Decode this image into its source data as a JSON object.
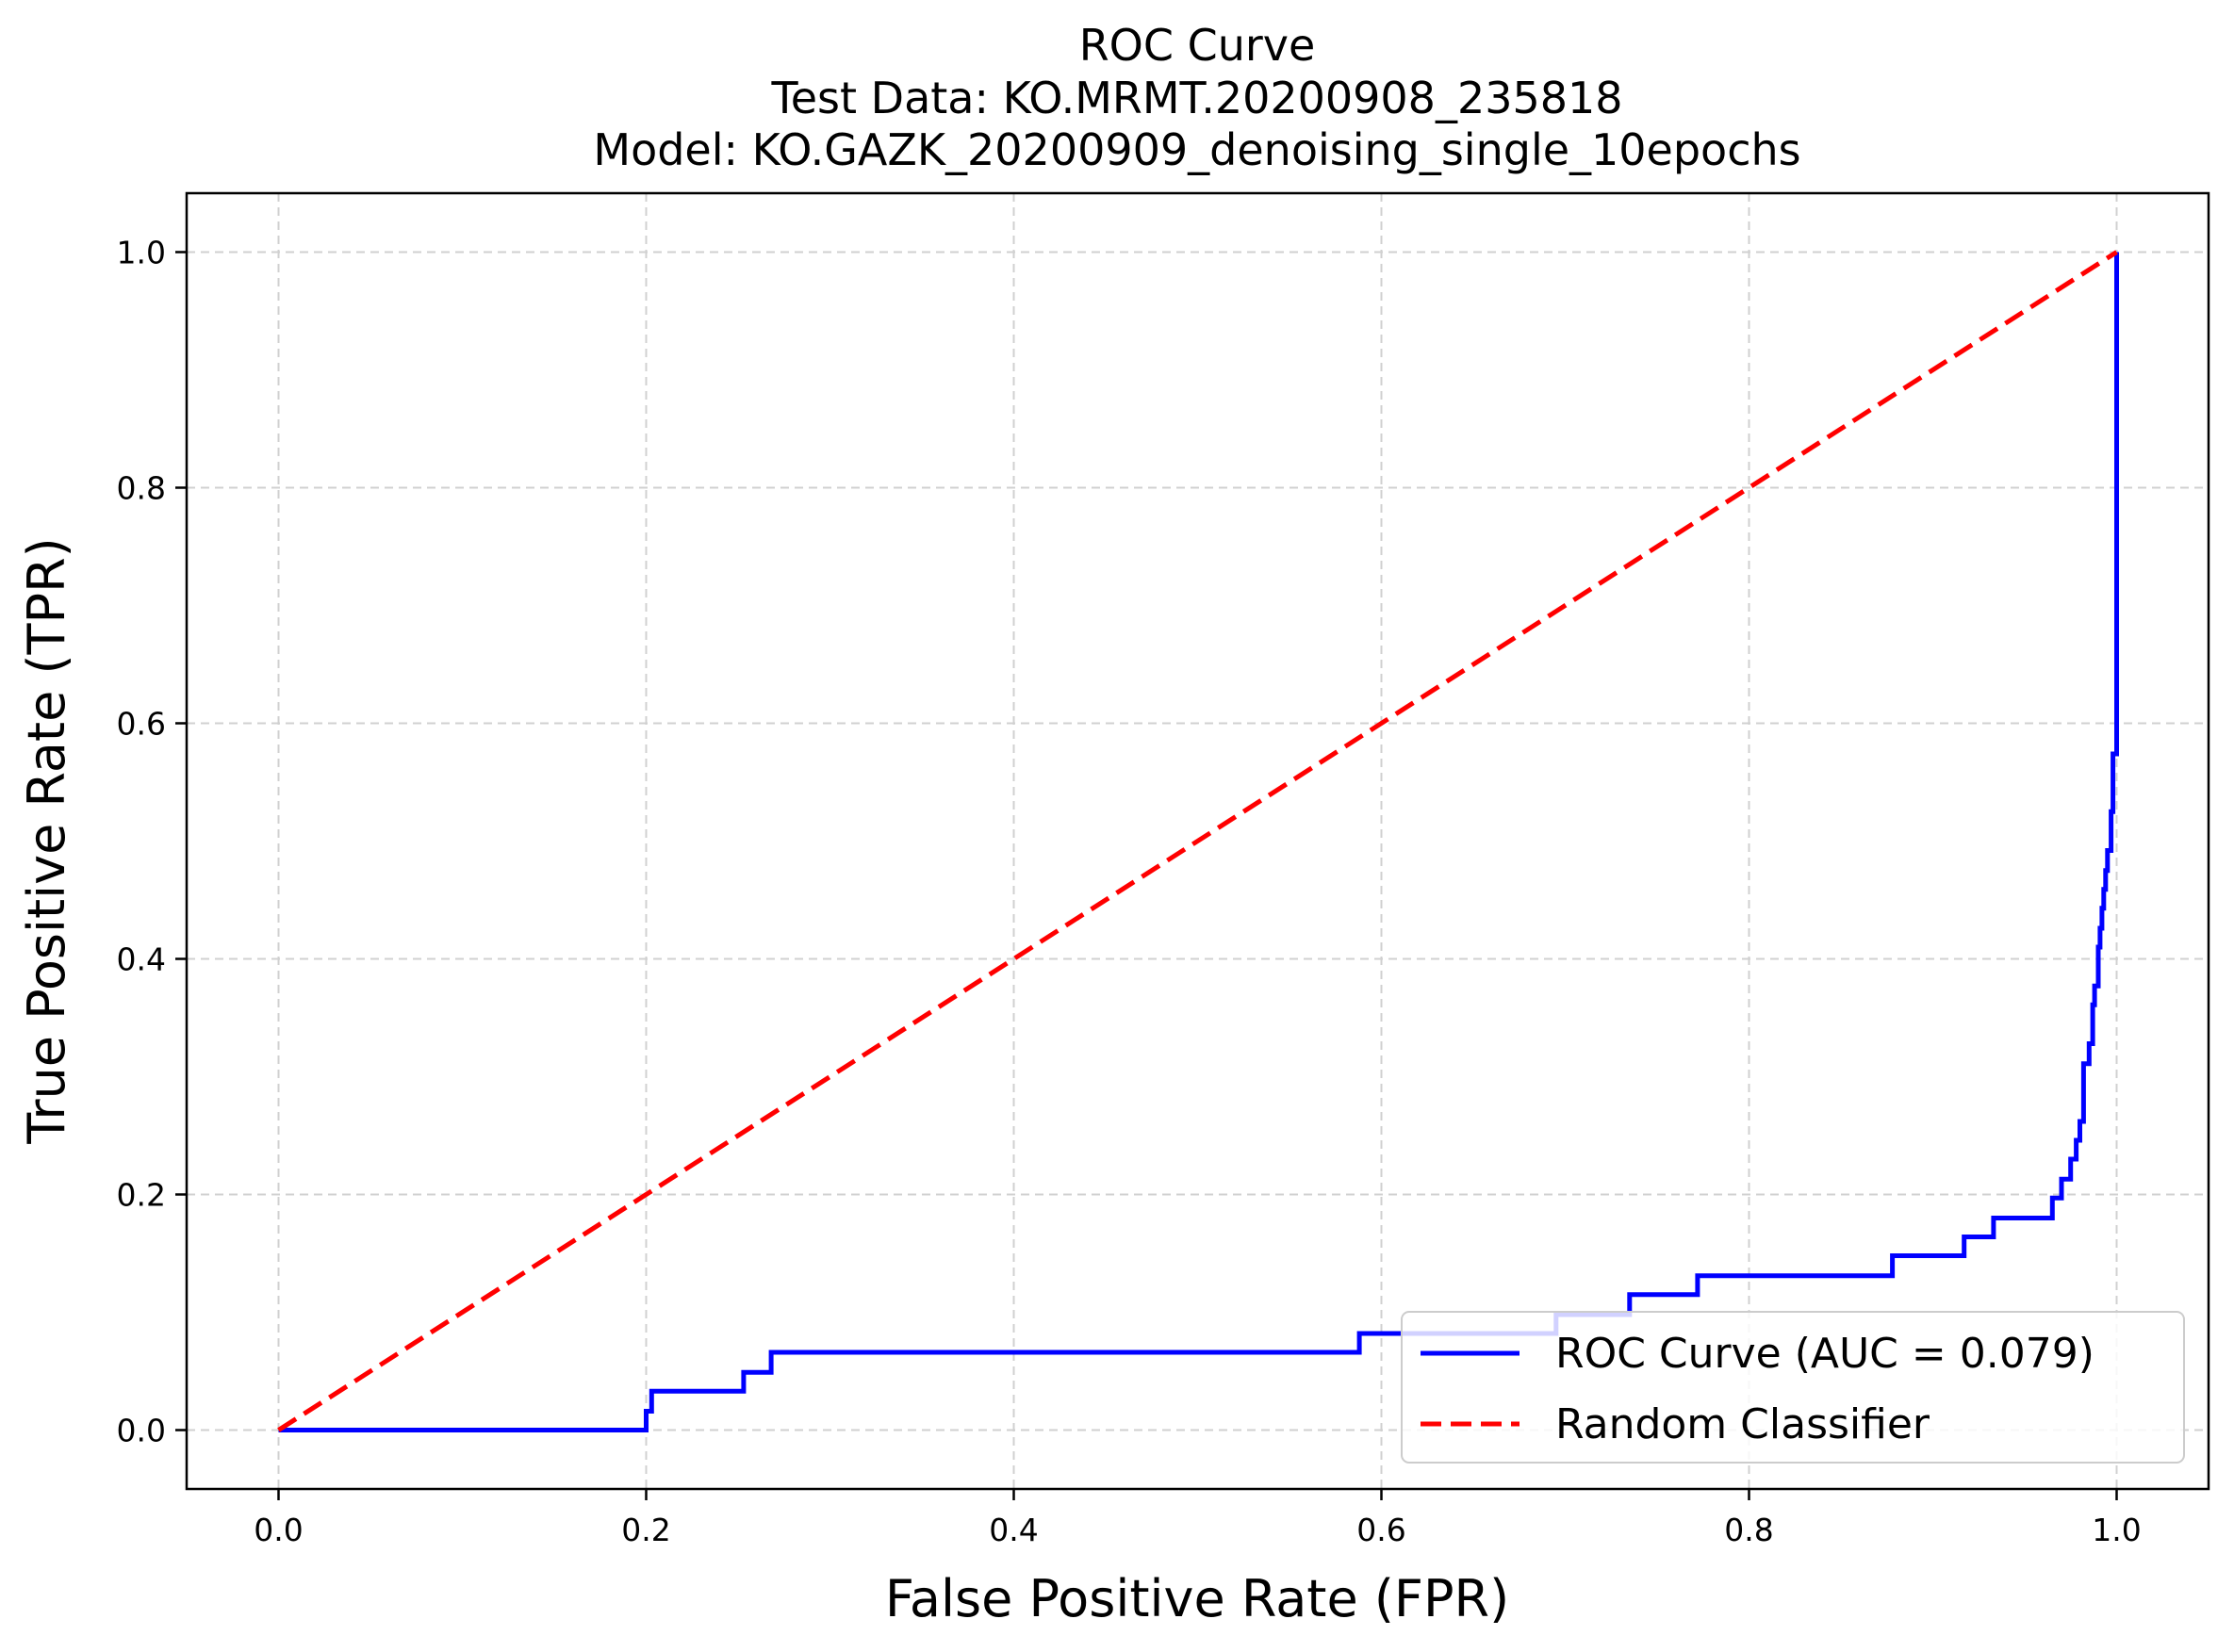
{
  "chart_data": {
    "type": "line",
    "title_lines": [
      "ROC Curve",
      "Test Data: KO.MRMT.20200908_235818",
      "Model: KO.GAZK_20200909_denoising_single_10epochs"
    ],
    "xlabel": "False Positive Rate (FPR)",
    "ylabel": "True Positive Rate (TPR)",
    "xlim": [
      -0.05,
      1.05
    ],
    "ylim": [
      -0.05,
      1.05
    ],
    "xticks": [
      0.0,
      0.2,
      0.4,
      0.6,
      0.8,
      1.0
    ],
    "xtick_labels": [
      "0.0",
      "0.2",
      "0.4",
      "0.6",
      "0.8",
      "1.0"
    ],
    "yticks": [
      0.0,
      0.2,
      0.4,
      0.6,
      0.8,
      1.0
    ],
    "ytick_labels": [
      "0.0",
      "0.2",
      "0.4",
      "0.6",
      "0.8",
      "1.0"
    ],
    "grid": true,
    "grid_style": "dashed",
    "legend_position": "lower right",
    "series": [
      {
        "name": "ROC Curve (AUC = 0.079)",
        "color": "#0000ff",
        "line_style": "solid",
        "points": [
          [
            0.0,
            0.0
          ],
          [
            0.2,
            0.0
          ],
          [
            0.2,
            0.016
          ],
          [
            0.203,
            0.016
          ],
          [
            0.203,
            0.033
          ],
          [
            0.253,
            0.033
          ],
          [
            0.253,
            0.049
          ],
          [
            0.268,
            0.049
          ],
          [
            0.268,
            0.066
          ],
          [
            0.588,
            0.066
          ],
          [
            0.588,
            0.082
          ],
          [
            0.695,
            0.082
          ],
          [
            0.695,
            0.098
          ],
          [
            0.735,
            0.098
          ],
          [
            0.735,
            0.115
          ],
          [
            0.772,
            0.115
          ],
          [
            0.772,
            0.131
          ],
          [
            0.878,
            0.131
          ],
          [
            0.878,
            0.148
          ],
          [
            0.917,
            0.148
          ],
          [
            0.917,
            0.164
          ],
          [
            0.933,
            0.164
          ],
          [
            0.933,
            0.18
          ],
          [
            0.965,
            0.18
          ],
          [
            0.965,
            0.197
          ],
          [
            0.97,
            0.197
          ],
          [
            0.97,
            0.213
          ],
          [
            0.975,
            0.213
          ],
          [
            0.975,
            0.23
          ],
          [
            0.978,
            0.23
          ],
          [
            0.978,
            0.246
          ],
          [
            0.98,
            0.246
          ],
          [
            0.98,
            0.262
          ],
          [
            0.982,
            0.262
          ],
          [
            0.982,
            0.279
          ],
          [
            0.982,
            0.311
          ],
          [
            0.985,
            0.311
          ],
          [
            0.985,
            0.328
          ],
          [
            0.987,
            0.328
          ],
          [
            0.987,
            0.344
          ],
          [
            0.987,
            0.361
          ],
          [
            0.988,
            0.361
          ],
          [
            0.988,
            0.377
          ],
          [
            0.99,
            0.377
          ],
          [
            0.99,
            0.393
          ],
          [
            0.99,
            0.41
          ],
          [
            0.991,
            0.41
          ],
          [
            0.991,
            0.426
          ],
          [
            0.992,
            0.426
          ],
          [
            0.992,
            0.443
          ],
          [
            0.993,
            0.443
          ],
          [
            0.993,
            0.459
          ],
          [
            0.994,
            0.459
          ],
          [
            0.994,
            0.475
          ],
          [
            0.995,
            0.475
          ],
          [
            0.995,
            0.492
          ],
          [
            0.997,
            0.492
          ],
          [
            0.997,
            0.508
          ],
          [
            0.997,
            0.525
          ],
          [
            0.998,
            0.525
          ],
          [
            0.998,
            0.541
          ],
          [
            0.998,
            0.574
          ],
          [
            1.0,
            0.574
          ],
          [
            1.0,
            1.0
          ]
        ]
      },
      {
        "name": "Random Classifier",
        "color": "#ff0000",
        "line_style": "dashed",
        "points": [
          [
            0.0,
            0.0
          ],
          [
            1.0,
            1.0
          ]
        ]
      }
    ]
  }
}
